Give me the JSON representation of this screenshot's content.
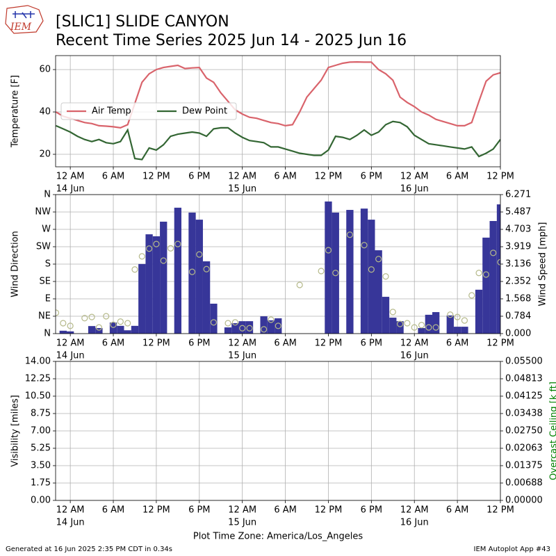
{
  "logo": "IEM",
  "title": "[SLIC1] SLIDE CANYON",
  "subtitle": "Recent Time Series 2025 Jun 14 - 2025 Jun 16",
  "footer_left": "Generated at 16 Jun 2025 2:35 PM CDT in 0.34s",
  "footer_right": "IEM Autoplot App #43",
  "chart_data": [
    {
      "type": "line",
      "ylabel": "Temperature [F]",
      "grid": true,
      "legend": "center left",
      "xlim": [
        -2.05,
        60
      ],
      "ylim": [
        14.1,
        66.6
      ],
      "yticks": [
        20,
        40,
        60
      ],
      "xticks": [
        {
          "value": 0,
          "label": "12 AM"
        },
        {
          "value": 6,
          "label": "6 AM"
        },
        {
          "value": 12,
          "label": "12 PM"
        },
        {
          "value": 18,
          "label": "6 PM"
        },
        {
          "value": 24,
          "label": "12 AM"
        },
        {
          "value": 30,
          "label": "6 AM"
        },
        {
          "value": 36,
          "label": "12 PM"
        },
        {
          "value": 42,
          "label": "6 PM"
        },
        {
          "value": 48,
          "label": "12 AM"
        },
        {
          "value": 54,
          "label": "6 AM"
        },
        {
          "value": 60,
          "label": "12 PM"
        }
      ],
      "xdates": [
        {
          "value": 0,
          "label": "14 Jun"
        },
        {
          "value": 24,
          "label": "15 Jun"
        },
        {
          "value": 48,
          "label": "16 Jun"
        }
      ],
      "x": [
        -2,
        -1,
        0,
        1,
        2,
        3,
        4,
        5,
        6,
        7,
        8,
        9,
        10,
        11,
        12,
        13,
        14,
        15,
        16,
        17,
        18,
        19,
        20,
        21,
        22,
        23,
        24,
        25,
        26,
        27,
        28,
        29,
        30,
        31,
        32,
        33,
        34,
        35,
        36,
        37,
        38,
        39,
        40,
        41,
        42,
        43,
        44,
        45,
        46,
        47,
        48,
        49,
        50,
        51,
        52,
        53,
        54,
        55,
        56,
        57,
        58,
        59,
        60
      ],
      "series": [
        {
          "name": "Air Temp",
          "color": "#d9636b",
          "values": [
            40,
            38,
            37,
            36,
            35,
            34.5,
            33.5,
            33.3,
            33,
            32.5,
            34,
            44,
            54,
            58,
            60,
            61,
            61.5,
            62,
            60.5,
            60.8,
            61,
            56,
            54,
            49,
            45,
            41,
            39,
            37.5,
            37,
            36,
            35,
            34.5,
            33.5,
            34,
            40,
            47,
            51,
            55,
            61,
            62,
            63,
            63.5,
            63.6,
            63.5,
            63.5,
            60,
            58,
            55,
            47,
            44.5,
            42.5,
            40,
            38.5,
            36.5,
            35.5,
            34.5,
            33.5,
            33.5,
            35,
            45,
            54.5,
            57.5,
            58.5
          ]
        },
        {
          "name": "Dew Point",
          "color": "#336633",
          "values": [
            33.5,
            32,
            30.5,
            28.5,
            27,
            26,
            27,
            25.5,
            25,
            26,
            31.5,
            18,
            17.5,
            23,
            22,
            24.5,
            28.5,
            29.5,
            30,
            30.5,
            30,
            28.5,
            32,
            32.5,
            32.5,
            30,
            28,
            26.5,
            26,
            25.5,
            23.5,
            23.5,
            22.5,
            21.5,
            20.5,
            20,
            19.5,
            19.5,
            22,
            28.5,
            28,
            27,
            29,
            31.5,
            29,
            30.5,
            34,
            35.5,
            35,
            33,
            29,
            27,
            25,
            24.5,
            24,
            23.5,
            23,
            22.5,
            23.5,
            19,
            20.5,
            22.5,
            27
          ]
        }
      ]
    },
    {
      "type": "bar",
      "ylabel": "Wind Direction",
      "y2label": "Wind Speed [mph]",
      "grid": true,
      "xlim": [
        -2.05,
        60
      ],
      "ylim": [
        0,
        360
      ],
      "y2lim": [
        0,
        6.271
      ],
      "yticks": [
        {
          "value": 0,
          "label": "N"
        },
        {
          "value": 45,
          "label": "NE"
        },
        {
          "value": 90,
          "label": "E"
        },
        {
          "value": 135,
          "label": "SE"
        },
        {
          "value": 180,
          "label": "S"
        },
        {
          "value": 225,
          "label": "SW"
        },
        {
          "value": 270,
          "label": "W"
        },
        {
          "value": 315,
          "label": "NW"
        },
        {
          "value": 360,
          "label": "N"
        }
      ],
      "y2ticks": [
        {
          "value": 0,
          "label": "0.000"
        },
        0.784,
        1.568,
        2.352,
        3.136,
        3.919,
        4.703,
        5.487,
        6.271
      ],
      "xticks": [
        {
          "value": 0,
          "label": "12 AM"
        },
        {
          "value": 6,
          "label": "6 AM"
        },
        {
          "value": 12,
          "label": "12 PM"
        },
        {
          "value": 18,
          "label": "6 PM"
        },
        {
          "value": 24,
          "label": "12 AM"
        },
        {
          "value": 30,
          "label": "6 AM"
        },
        {
          "value": 36,
          "label": "12 PM"
        },
        {
          "value": 42,
          "label": "6 PM"
        },
        {
          "value": 48,
          "label": "12 AM"
        },
        {
          "value": 54,
          "label": "6 AM"
        },
        {
          "value": 60,
          "label": "12 PM"
        }
      ],
      "xdates": [
        {
          "value": 0,
          "label": "14 Jun"
        },
        {
          "value": 24,
          "label": "15 Jun"
        },
        {
          "value": 48,
          "label": "16 Jun"
        }
      ],
      "series": [
        {
          "type": "bar",
          "axis": "y2",
          "color": "#373699",
          "x": [
            -1,
            0,
            3,
            4,
            6,
            7,
            8,
            9,
            10,
            11,
            12,
            13,
            15,
            17,
            18,
            19,
            20,
            22,
            23,
            24,
            25,
            27,
            28,
            29,
            36,
            37,
            39,
            41,
            42,
            43,
            44,
            45,
            46,
            49,
            50,
            51,
            53,
            54,
            55,
            57,
            58,
            59,
            60
          ],
          "values": [
            0.13,
            0.1,
            0.34,
            0.25,
            0.5,
            0.35,
            0.15,
            0.35,
            3.14,
            4.48,
            4.39,
            5.05,
            5.68,
            5.46,
            5.14,
            3.26,
            1.35,
            0.28,
            0.47,
            0.56,
            0.56,
            0.78,
            0.6,
            0.69,
            5.96,
            5.46,
            5.58,
            5.64,
            5.14,
            3.76,
            1.66,
            0.72,
            0.56,
            0.25,
            0.85,
            0.97,
            0.82,
            0.31,
            0.31,
            1.98,
            4.33,
            5.08,
            5.83
          ]
        },
        {
          "type": "scatter",
          "color": "#b5b98a",
          "x": [
            -2,
            -1,
            0,
            2,
            3,
            4,
            5,
            6,
            7,
            8,
            9,
            10,
            11,
            12,
            13,
            14,
            15,
            17,
            18,
            19,
            20,
            22,
            23,
            24,
            25,
            27,
            28,
            29,
            32,
            35,
            36,
            37,
            39,
            41,
            42,
            43,
            44,
            45,
            46,
            47,
            48,
            49,
            50,
            51,
            53,
            54,
            55,
            56,
            57,
            58,
            59,
            60
          ],
          "values": [
            54,
            27,
            20,
            40,
            43,
            16,
            45,
            23,
            31,
            27,
            166,
            200,
            220,
            232,
            189,
            221,
            232,
            160,
            205,
            167,
            29,
            27,
            29,
            14,
            14,
            11,
            36,
            20,
            126,
            162,
            216,
            157,
            256,
            229,
            166,
            193,
            148,
            56,
            25,
            27,
            16,
            22,
            16,
            16,
            49,
            43,
            34,
            99,
            157,
            153,
            209,
            185
          ]
        }
      ]
    },
    {
      "type": "line",
      "ylabel": "Visibility [miles]",
      "y2label": "Overcast Ceiling [k ft]",
      "y2label_color": "green",
      "grid": true,
      "xlabel": "Plot Time Zone: America/Los_Angeles",
      "xlim": [
        -2.05,
        60
      ],
      "ylim": [
        0,
        14
      ],
      "y2lim": [
        0,
        0.055
      ],
      "yticks": [
        {
          "value": 0,
          "label": "0.00"
        },
        1.75,
        {
          "value": 3.5,
          "label": "3.50"
        },
        5.25,
        {
          "value": 7,
          "label": "7.00"
        },
        8.75,
        {
          "value": 10.5,
          "label": "10.50"
        },
        12.25,
        {
          "value": 14,
          "label": "14.00"
        }
      ],
      "y2ticks": [
        {
          "value": 0,
          "label": "0.00000"
        },
        {
          "value": 0.006875,
          "label": "0.00688"
        },
        0.01375,
        {
          "value": 0.020625,
          "label": "0.02063"
        },
        {
          "value": 0.0275,
          "label": "0.02750"
        },
        {
          "value": 0.034375,
          "label": "0.03438"
        },
        0.04125,
        {
          "value": 0.048125,
          "label": "0.04813"
        },
        {
          "value": 0.055,
          "label": "0.05500"
        }
      ],
      "xticks": [
        {
          "value": 0,
          "label": "12 AM"
        },
        {
          "value": 6,
          "label": "6 AM"
        },
        {
          "value": 12,
          "label": "12 PM"
        },
        {
          "value": 18,
          "label": "6 PM"
        },
        {
          "value": 24,
          "label": "12 AM"
        },
        {
          "value": 30,
          "label": "6 AM"
        },
        {
          "value": 36,
          "label": "12 PM"
        },
        {
          "value": 42,
          "label": "6 PM"
        },
        {
          "value": 48,
          "label": "12 AM"
        },
        {
          "value": 54,
          "label": "6 AM"
        },
        {
          "value": 60,
          "label": "12 PM"
        }
      ],
      "xdates": [
        {
          "value": 0,
          "label": "14 Jun"
        },
        {
          "value": 24,
          "label": "15 Jun"
        },
        {
          "value": 48,
          "label": "16 Jun"
        }
      ],
      "series": []
    }
  ]
}
